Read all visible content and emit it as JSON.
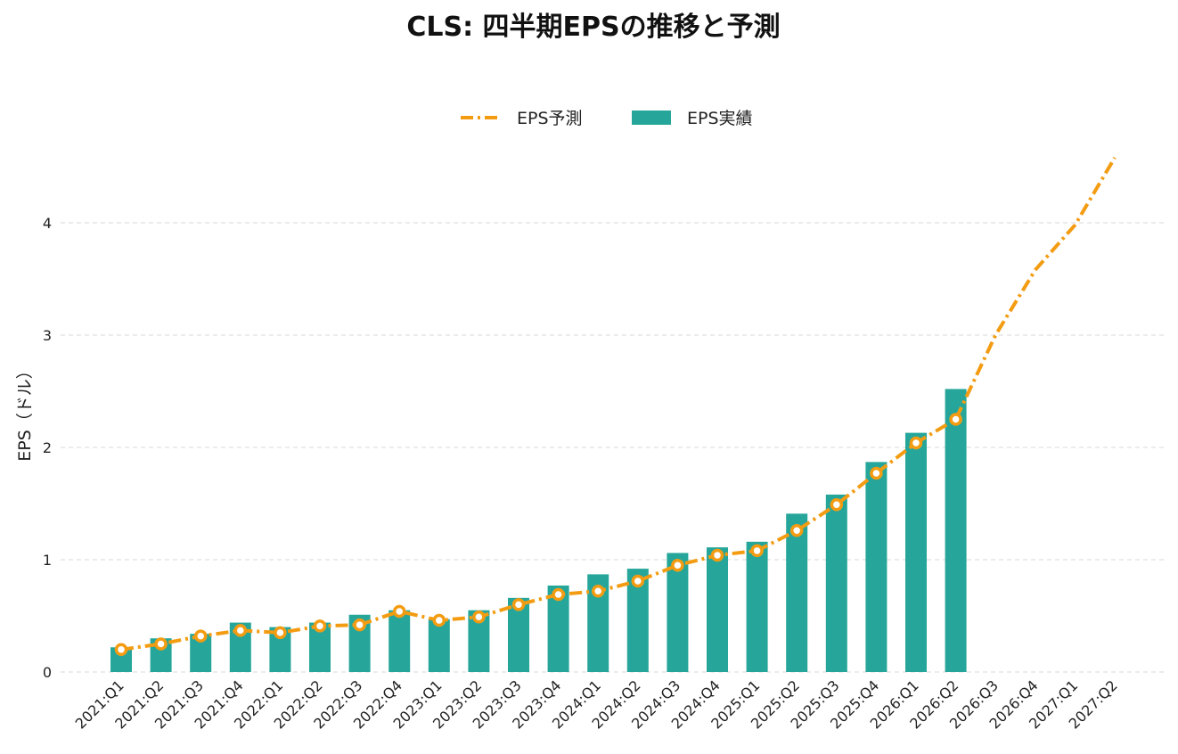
{
  "chart_data": {
    "type": "bar",
    "title": "CLS: 四半期EPSの推移と予測",
    "xlabel": "",
    "ylabel": "EPS（ドル）",
    "ylim": [
      0,
      4.7
    ],
    "yticks": [
      0,
      1,
      2,
      3,
      4
    ],
    "grid": true,
    "legend_position": "top-center",
    "categories": [
      "2021:Q1",
      "2021:Q2",
      "2021:Q3",
      "2021:Q4",
      "2022:Q1",
      "2022:Q2",
      "2022:Q3",
      "2022:Q4",
      "2023:Q1",
      "2023:Q2",
      "2023:Q3",
      "2023:Q4",
      "2024:Q1",
      "2024:Q2",
      "2024:Q3",
      "2024:Q4",
      "2025:Q1",
      "2025:Q2",
      "2025:Q3",
      "2025:Q4",
      "2026:Q1",
      "2026:Q2",
      "2026:Q3",
      "2026:Q4",
      "2027:Q1",
      "2027:Q2"
    ],
    "series": [
      {
        "name": "EPS予測",
        "type": "line",
        "color": "#F39C12",
        "values": [
          0.2,
          0.25,
          0.32,
          0.37,
          0.35,
          0.41,
          0.42,
          0.54,
          0.46,
          0.49,
          0.6,
          0.69,
          0.72,
          0.81,
          0.95,
          1.04,
          1.08,
          1.26,
          1.49,
          1.77,
          2.04,
          2.25,
          3.0,
          3.58,
          3.98,
          4.58
        ]
      },
      {
        "name": "EPS実績",
        "type": "bar",
        "color": "#26A69A",
        "values": [
          0.22,
          0.3,
          0.34,
          0.44,
          0.4,
          0.44,
          0.51,
          0.55,
          0.47,
          0.55,
          0.66,
          0.77,
          0.87,
          0.92,
          1.06,
          1.11,
          1.16,
          1.41,
          1.58,
          1.87,
          2.13,
          2.52,
          null,
          null,
          null,
          null
        ]
      }
    ]
  }
}
